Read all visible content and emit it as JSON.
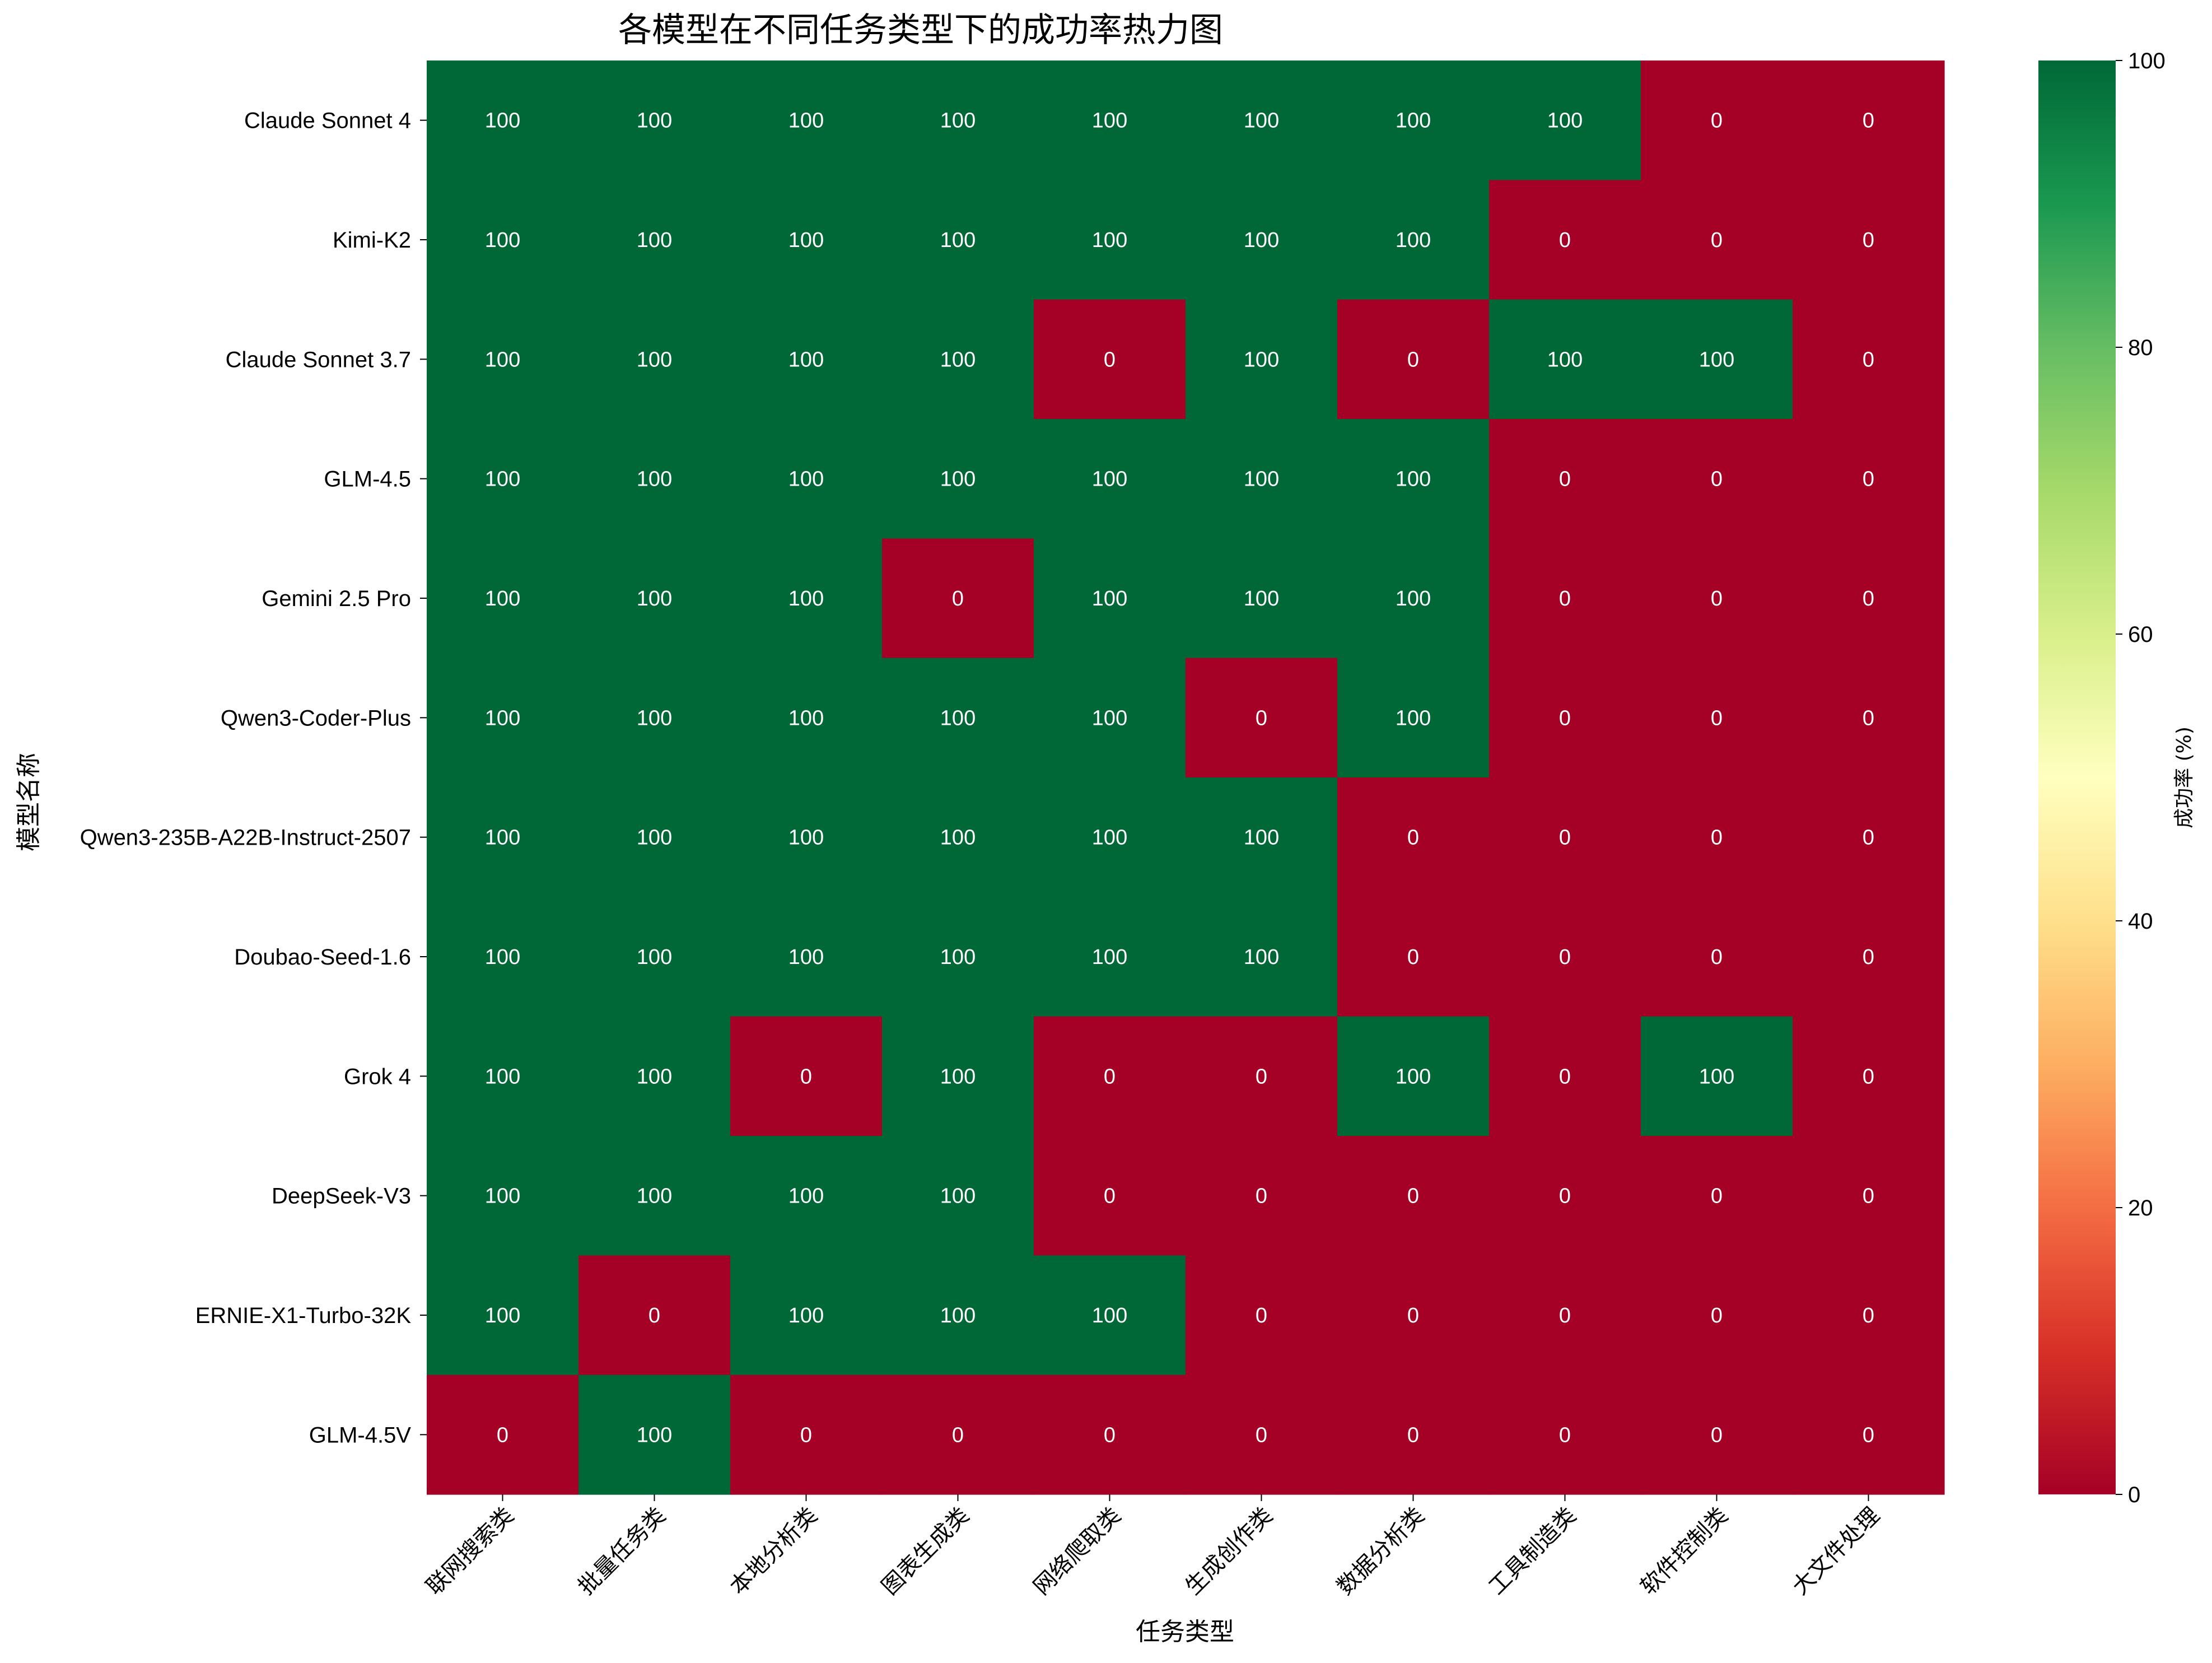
{
  "chart_data": {
    "type": "heatmap",
    "title": "各模型在不同任务类型下的成功率热力图",
    "xlabel": "任务类型",
    "ylabel": "模型名称",
    "colorbar_label": "成功率 (%)",
    "colorbar_ticks": [
      0,
      20,
      40,
      60,
      80,
      100
    ],
    "colormap": "RdYlGn",
    "vmin": 0,
    "vmax": 100,
    "columns": [
      "联网搜索类",
      "批量任务类",
      "本地分析类",
      "图表生成类",
      "网络爬取类",
      "生成创作类",
      "数据分析类",
      "工具制造类",
      "软件控制类",
      "大文件处理"
    ],
    "rows": [
      "Claude Sonnet 4",
      "Kimi-K2",
      "Claude Sonnet 3.7",
      "GLM-4.5",
      "Gemini 2.5 Pro",
      "Qwen3-Coder-Plus",
      "Qwen3-235B-A22B-Instruct-2507",
      "Doubao-Seed-1.6",
      "Grok 4",
      "DeepSeek-V3",
      "ERNIE-X1-Turbo-32K",
      "GLM-4.5V"
    ],
    "values": [
      [
        100,
        100,
        100,
        100,
        100,
        100,
        100,
        100,
        0,
        0
      ],
      [
        100,
        100,
        100,
        100,
        100,
        100,
        100,
        0,
        0,
        0
      ],
      [
        100,
        100,
        100,
        100,
        0,
        100,
        0,
        100,
        100,
        0
      ],
      [
        100,
        100,
        100,
        100,
        100,
        100,
        100,
        0,
        0,
        0
      ],
      [
        100,
        100,
        100,
        0,
        100,
        100,
        100,
        0,
        0,
        0
      ],
      [
        100,
        100,
        100,
        100,
        100,
        0,
        100,
        0,
        0,
        0
      ],
      [
        100,
        100,
        100,
        100,
        100,
        100,
        0,
        0,
        0,
        0
      ],
      [
        100,
        100,
        100,
        100,
        100,
        100,
        0,
        0,
        0,
        0
      ],
      [
        100,
        100,
        0,
        100,
        0,
        0,
        100,
        0,
        100,
        0
      ],
      [
        100,
        100,
        100,
        100,
        0,
        0,
        0,
        0,
        0,
        0
      ],
      [
        100,
        0,
        100,
        100,
        100,
        0,
        0,
        0,
        0,
        0
      ],
      [
        0,
        100,
        0,
        0,
        0,
        0,
        0,
        0,
        0,
        0
      ]
    ]
  },
  "colors": {
    "high": "#006837",
    "low": "#a50026"
  }
}
